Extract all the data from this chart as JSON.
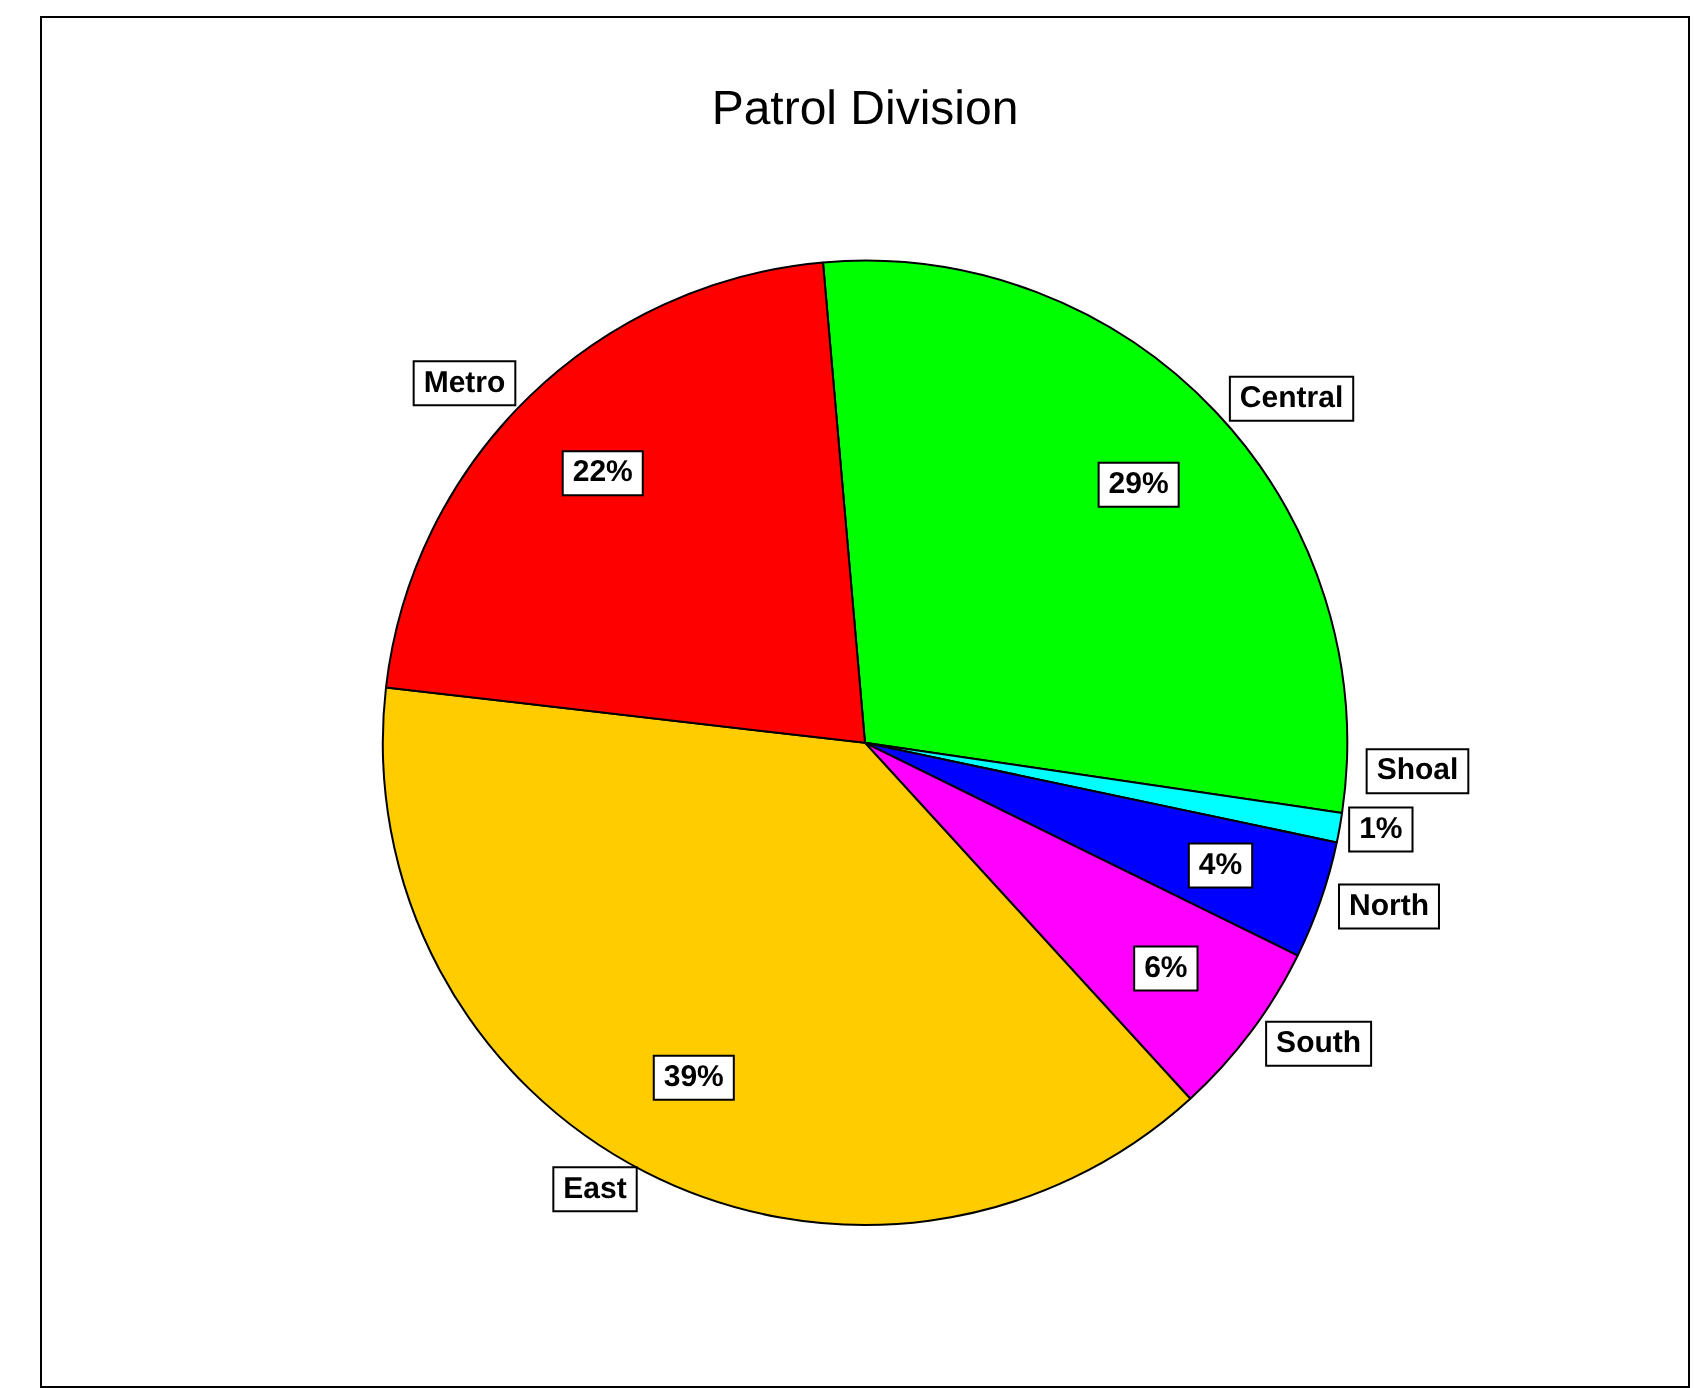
{
  "chart_data": {
    "type": "pie",
    "title": "Patrol Division",
    "categories": [
      "Central",
      "Shoal",
      "North",
      "South",
      "East",
      "Metro"
    ],
    "values": [
      29,
      1,
      4,
      6,
      39,
      22
    ],
    "value_labels": [
      "29%",
      "1%",
      "4%",
      "6%",
      "39%",
      "22%"
    ],
    "colors": [
      "#00ff00",
      "#00ffff",
      "#0000ff",
      "#ff00ff",
      "#ffcc00",
      "#ff0000"
    ],
    "legend": false
  }
}
